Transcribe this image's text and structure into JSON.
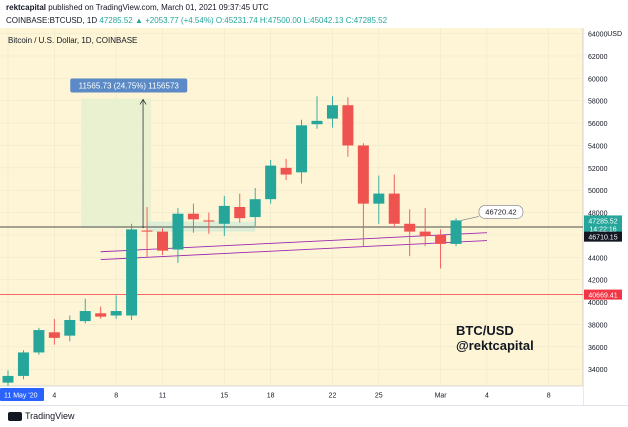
{
  "header": {
    "publisher": "rektcapital",
    "published_text": "published on TradingView.com, March 01, 2021 09:37:45 UTC",
    "symbol": "COINBASE:BTCUSD, 1D",
    "ohlc": "47285.52 ▲ +2053.77 (+4.54%) O:45231.74 H:47500.00 L:45042.13 C:47285.52"
  },
  "chart_data": {
    "type": "candlestick",
    "title": "Bitcoin / U.S. Dollar, 1D, COINBASE",
    "currency_label": "USD",
    "ylim": [
      32500,
      64500
    ],
    "y_ticks": [
      34000,
      36000,
      38000,
      40000,
      42000,
      44000,
      46000,
      48000,
      50000,
      52000,
      54000,
      56000,
      58000,
      60000,
      62000,
      64000
    ],
    "x_ticks": [
      {
        "label": "11 May '20",
        "day": 0
      },
      {
        "label": "4",
        "day": 3
      },
      {
        "label": "8",
        "day": 7
      },
      {
        "label": "11",
        "day": 10
      },
      {
        "label": "15",
        "day": 14
      },
      {
        "label": "18",
        "day": 17
      },
      {
        "label": "22",
        "day": 21
      },
      {
        "label": "25",
        "day": 24
      },
      {
        "label": "Mar",
        "day": 28
      },
      {
        "label": "4",
        "day": 31
      },
      {
        "label": "8",
        "day": 35
      }
    ],
    "candles": [
      {
        "day": 0,
        "o": 32800,
        "h": 33900,
        "l": 32400,
        "c": 33400
      },
      {
        "day": 1,
        "o": 33400,
        "h": 35700,
        "l": 33100,
        "c": 35500
      },
      {
        "day": 2,
        "o": 35500,
        "h": 37700,
        "l": 35300,
        "c": 37500
      },
      {
        "day": 3,
        "o": 37300,
        "h": 38500,
        "l": 36200,
        "c": 36800
      },
      {
        "day": 4,
        "o": 37000,
        "h": 38800,
        "l": 36500,
        "c": 38400
      },
      {
        "day": 5,
        "o": 38300,
        "h": 40300,
        "l": 38100,
        "c": 39200
      },
      {
        "day": 6,
        "o": 39000,
        "h": 39600,
        "l": 38500,
        "c": 38700
      },
      {
        "day": 7,
        "o": 38800,
        "h": 40600,
        "l": 38500,
        "c": 39200
      },
      {
        "day": 8,
        "o": 38800,
        "h": 47000,
        "l": 38400,
        "c": 46500
      },
      {
        "day": 9,
        "o": 46400,
        "h": 48500,
        "l": 44000,
        "c": 46300
      },
      {
        "day": 10,
        "o": 46300,
        "h": 46600,
        "l": 44200,
        "c": 44600
      },
      {
        "day": 11,
        "o": 44700,
        "h": 48400,
        "l": 43500,
        "c": 47900
      },
      {
        "day": 12,
        "o": 47900,
        "h": 48800,
        "l": 46200,
        "c": 47400
      },
      {
        "day": 13,
        "o": 47300,
        "h": 48000,
        "l": 46100,
        "c": 47200
      },
      {
        "day": 14,
        "o": 47000,
        "h": 49500,
        "l": 45900,
        "c": 48600
      },
      {
        "day": 15,
        "o": 48500,
        "h": 49700,
        "l": 47100,
        "c": 47500
      },
      {
        "day": 16,
        "o": 47600,
        "h": 50200,
        "l": 46800,
        "c": 49200
      },
      {
        "day": 17,
        "o": 49200,
        "h": 52700,
        "l": 48800,
        "c": 52200
      },
      {
        "day": 18,
        "o": 52000,
        "h": 52800,
        "l": 50900,
        "c": 51400
      },
      {
        "day": 19,
        "o": 51600,
        "h": 56300,
        "l": 50600,
        "c": 55800
      },
      {
        "day": 20,
        "o": 55900,
        "h": 58400,
        "l": 55500,
        "c": 56200
      },
      {
        "day": 21,
        "o": 56400,
        "h": 58400,
        "l": 55600,
        "c": 57600
      },
      {
        "day": 22,
        "o": 57600,
        "h": 58300,
        "l": 53000,
        "c": 54000
      },
      {
        "day": 23,
        "o": 54000,
        "h": 54200,
        "l": 45000,
        "c": 48800
      },
      {
        "day": 24,
        "o": 48800,
        "h": 51300,
        "l": 47000,
        "c": 49700
      },
      {
        "day": 25,
        "o": 49700,
        "h": 51400,
        "l": 46700,
        "c": 47000
      },
      {
        "day": 26,
        "o": 47000,
        "h": 48300,
        "l": 44100,
        "c": 46300
      },
      {
        "day": 27,
        "o": 46300,
        "h": 48400,
        "l": 45000,
        "c": 45900
      },
      {
        "day": 28,
        "o": 46000,
        "h": 46500,
        "l": 43000,
        "c": 45200
      },
      {
        "day": 29,
        "o": 45200,
        "h": 47500,
        "l": 45000,
        "c": 47300
      }
    ],
    "measure": {
      "label": "11565.73 (24.75%) 1156573",
      "day_from": 5,
      "day_to": 9,
      "price_from": 46600,
      "price_to": 58200
    },
    "zone": {
      "day_from": 9,
      "day_to": 16,
      "price_from": 46300,
      "price_to": 47200
    },
    "trendlines": [
      {
        "day1": 6,
        "p1": 44500,
        "day2": 31,
        "p2": 46200
      },
      {
        "day1": 6,
        "p1": 43800,
        "day2": 31,
        "p2": 45500
      }
    ],
    "horizontal_lines": [
      {
        "price": 46710,
        "color": "#131722"
      },
      {
        "price": 40669.41,
        "color": "#f23645"
      }
    ],
    "callout": {
      "label": "46720.42",
      "day": 31,
      "price": 48100
    },
    "price_labels": [
      {
        "text": "47285.52",
        "price": 47300,
        "bg": "#26a69a",
        "fg": "#ffffff"
      },
      {
        "text": "14:22:16",
        "price": 46570,
        "bg": "#26a69a",
        "fg": "#ffffff"
      },
      {
        "text": "46710.15",
        "price": 45850,
        "bg": "#131722",
        "fg": "#ffffff"
      },
      {
        "text": "40669.41",
        "price": 40669.41,
        "bg": "#f23645",
        "fg": "#ffffff"
      }
    ],
    "annotation": [
      "BTC/USD",
      "@rektcapital"
    ],
    "colors": {
      "up": "#26a69a",
      "down": "#ef5350",
      "bg": "#fdf5d6"
    }
  },
  "footer": {
    "brand": "TradingView"
  }
}
